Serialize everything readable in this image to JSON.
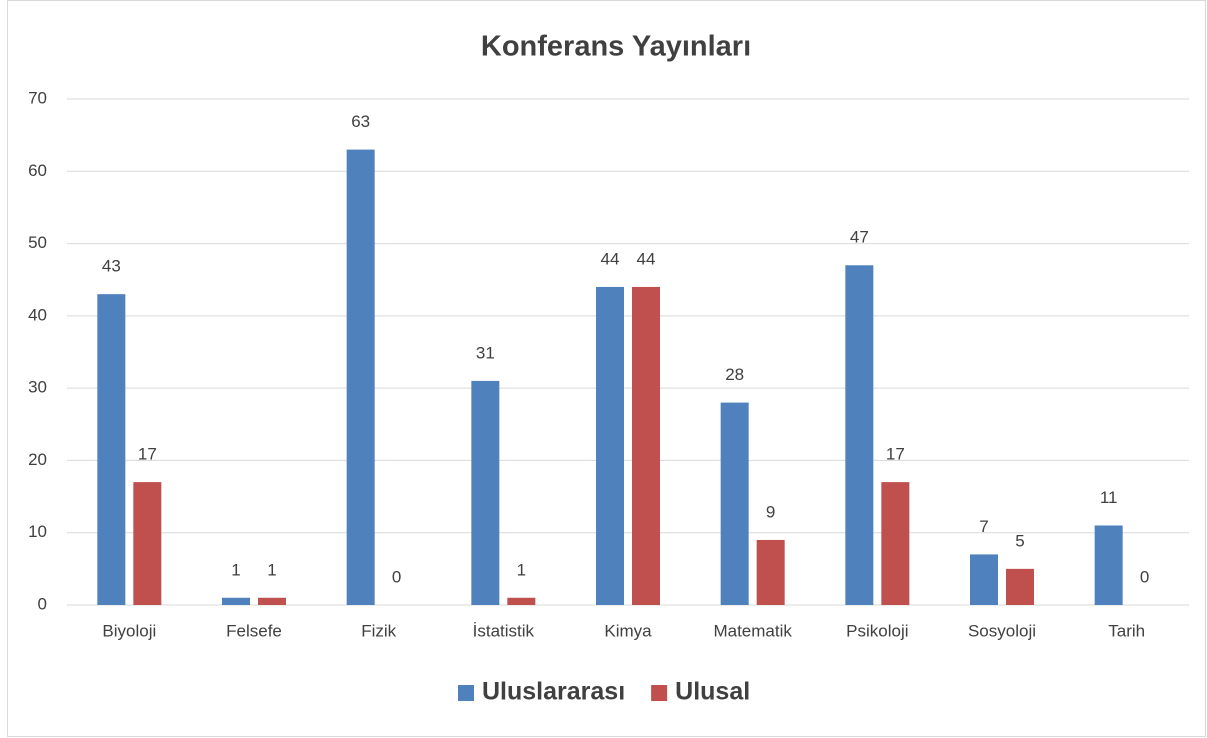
{
  "chart_data": {
    "type": "bar",
    "title": "Konferans Yayınları",
    "categories": [
      "Biyoloji",
      "Felsefe",
      "Fizik",
      "İstatistik",
      "Kimya",
      "Matematik",
      "Psikoloji",
      "Sosyoloji",
      "Tarih"
    ],
    "series": [
      {
        "name": "Uluslararası",
        "color": "#4f81bd",
        "values": [
          43,
          1,
          63,
          31,
          44,
          28,
          47,
          7,
          11
        ]
      },
      {
        "name": "Ulusal",
        "color": "#c0504d",
        "values": [
          17,
          1,
          0,
          1,
          44,
          9,
          17,
          5,
          0
        ]
      }
    ],
    "ylim": [
      0,
      70
    ],
    "yticks": [
      0,
      10,
      20,
      30,
      40,
      50,
      60,
      70
    ],
    "grid": true,
    "legend": "bottom"
  }
}
